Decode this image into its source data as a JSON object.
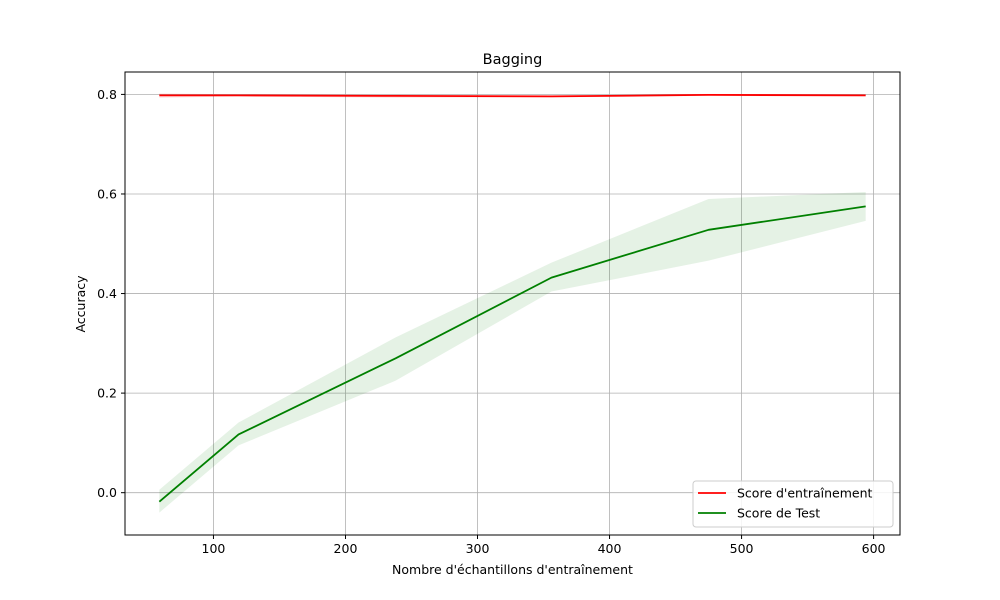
{
  "chart_data": {
    "type": "line",
    "title": "Bagging",
    "xlabel": "Nombre d'échantillons d'entraînement",
    "ylabel": "Accuracy",
    "xlim": [
      33,
      620
    ],
    "ylim": [
      -0.085,
      0.845
    ],
    "xticks": [
      100,
      200,
      300,
      400,
      500,
      600
    ],
    "yticks": [
      0.0,
      0.2,
      0.4,
      0.6,
      0.8
    ],
    "ytick_labels": [
      "0.0",
      "0.2",
      "0.4",
      "0.6",
      "0.8"
    ],
    "grid": true,
    "legend_position": "lower right",
    "x": [
      59,
      119,
      238,
      356,
      475,
      594
    ],
    "series": [
      {
        "name": "Score d'entraînement",
        "color": "#ff0000",
        "values": [
          0.798,
          0.798,
          0.797,
          0.796,
          0.799,
          0.798
        ],
        "band_lower": [
          0.793,
          0.796,
          0.793,
          0.794,
          0.797,
          0.796
        ],
        "band_upper": [
          0.802,
          0.8,
          0.8,
          0.798,
          0.801,
          0.8
        ]
      },
      {
        "name": "Score de Test",
        "color": "#008000",
        "values": [
          -0.018,
          0.117,
          0.27,
          0.432,
          0.528,
          0.575
        ],
        "band_lower": [
          -0.04,
          0.095,
          0.225,
          0.404,
          0.466,
          0.546
        ],
        "band_upper": [
          0.006,
          0.141,
          0.312,
          0.462,
          0.59,
          0.604
        ]
      }
    ]
  }
}
